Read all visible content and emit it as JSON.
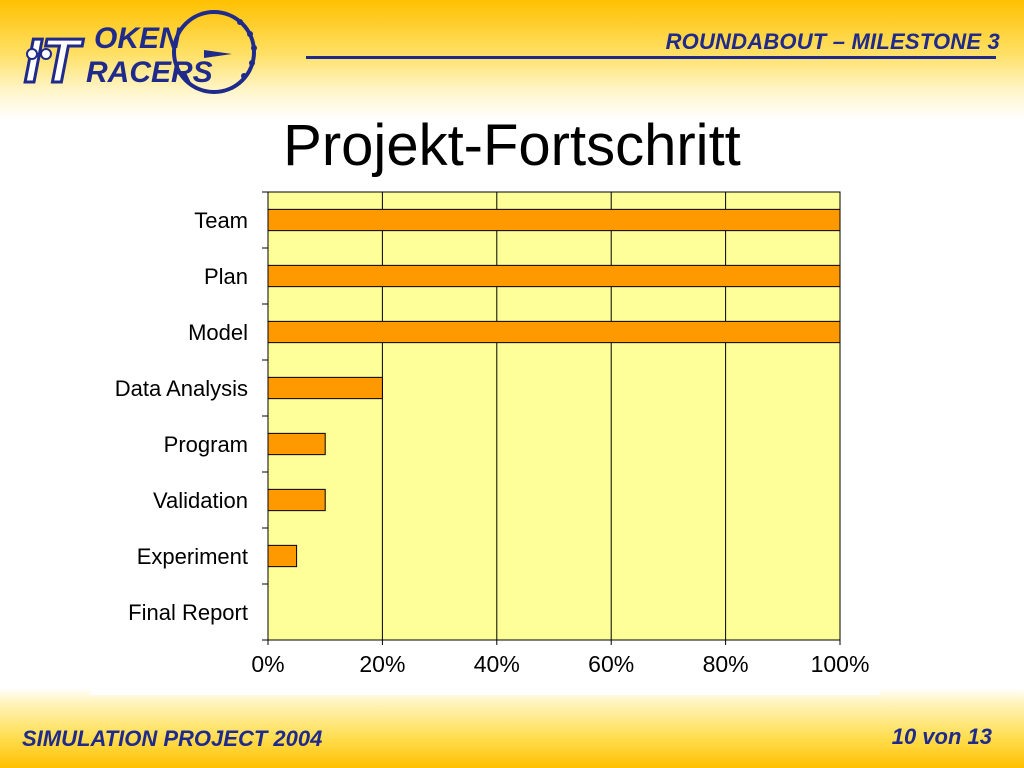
{
  "header": {
    "logo_text_line1": "OKEN",
    "logo_text_line2": "RACERS",
    "title": "ROUNDABOUT – MILESTONE 3"
  },
  "slide": {
    "title": "Projekt-Fortschritt"
  },
  "footer": {
    "left": "SIMULATION PROJECT 2004",
    "right": "10 von 13"
  },
  "colors": {
    "brand_blue": "#1f2a8a",
    "bar_fill": "#ff9900",
    "plot_bg": "#ffff99",
    "band": "#ffc000"
  },
  "chart_data": {
    "type": "bar",
    "orientation": "horizontal",
    "categories": [
      "Team",
      "Plan",
      "Model",
      "Data Analysis",
      "Program",
      "Validation",
      "Experiment",
      "Final Report"
    ],
    "values": [
      100,
      100,
      100,
      20,
      10,
      10,
      5,
      0
    ],
    "xlim": [
      0,
      100
    ],
    "x_tick_labels": [
      "0%",
      "20%",
      "40%",
      "60%",
      "80%",
      "100%"
    ],
    "grid": "vertical"
  }
}
